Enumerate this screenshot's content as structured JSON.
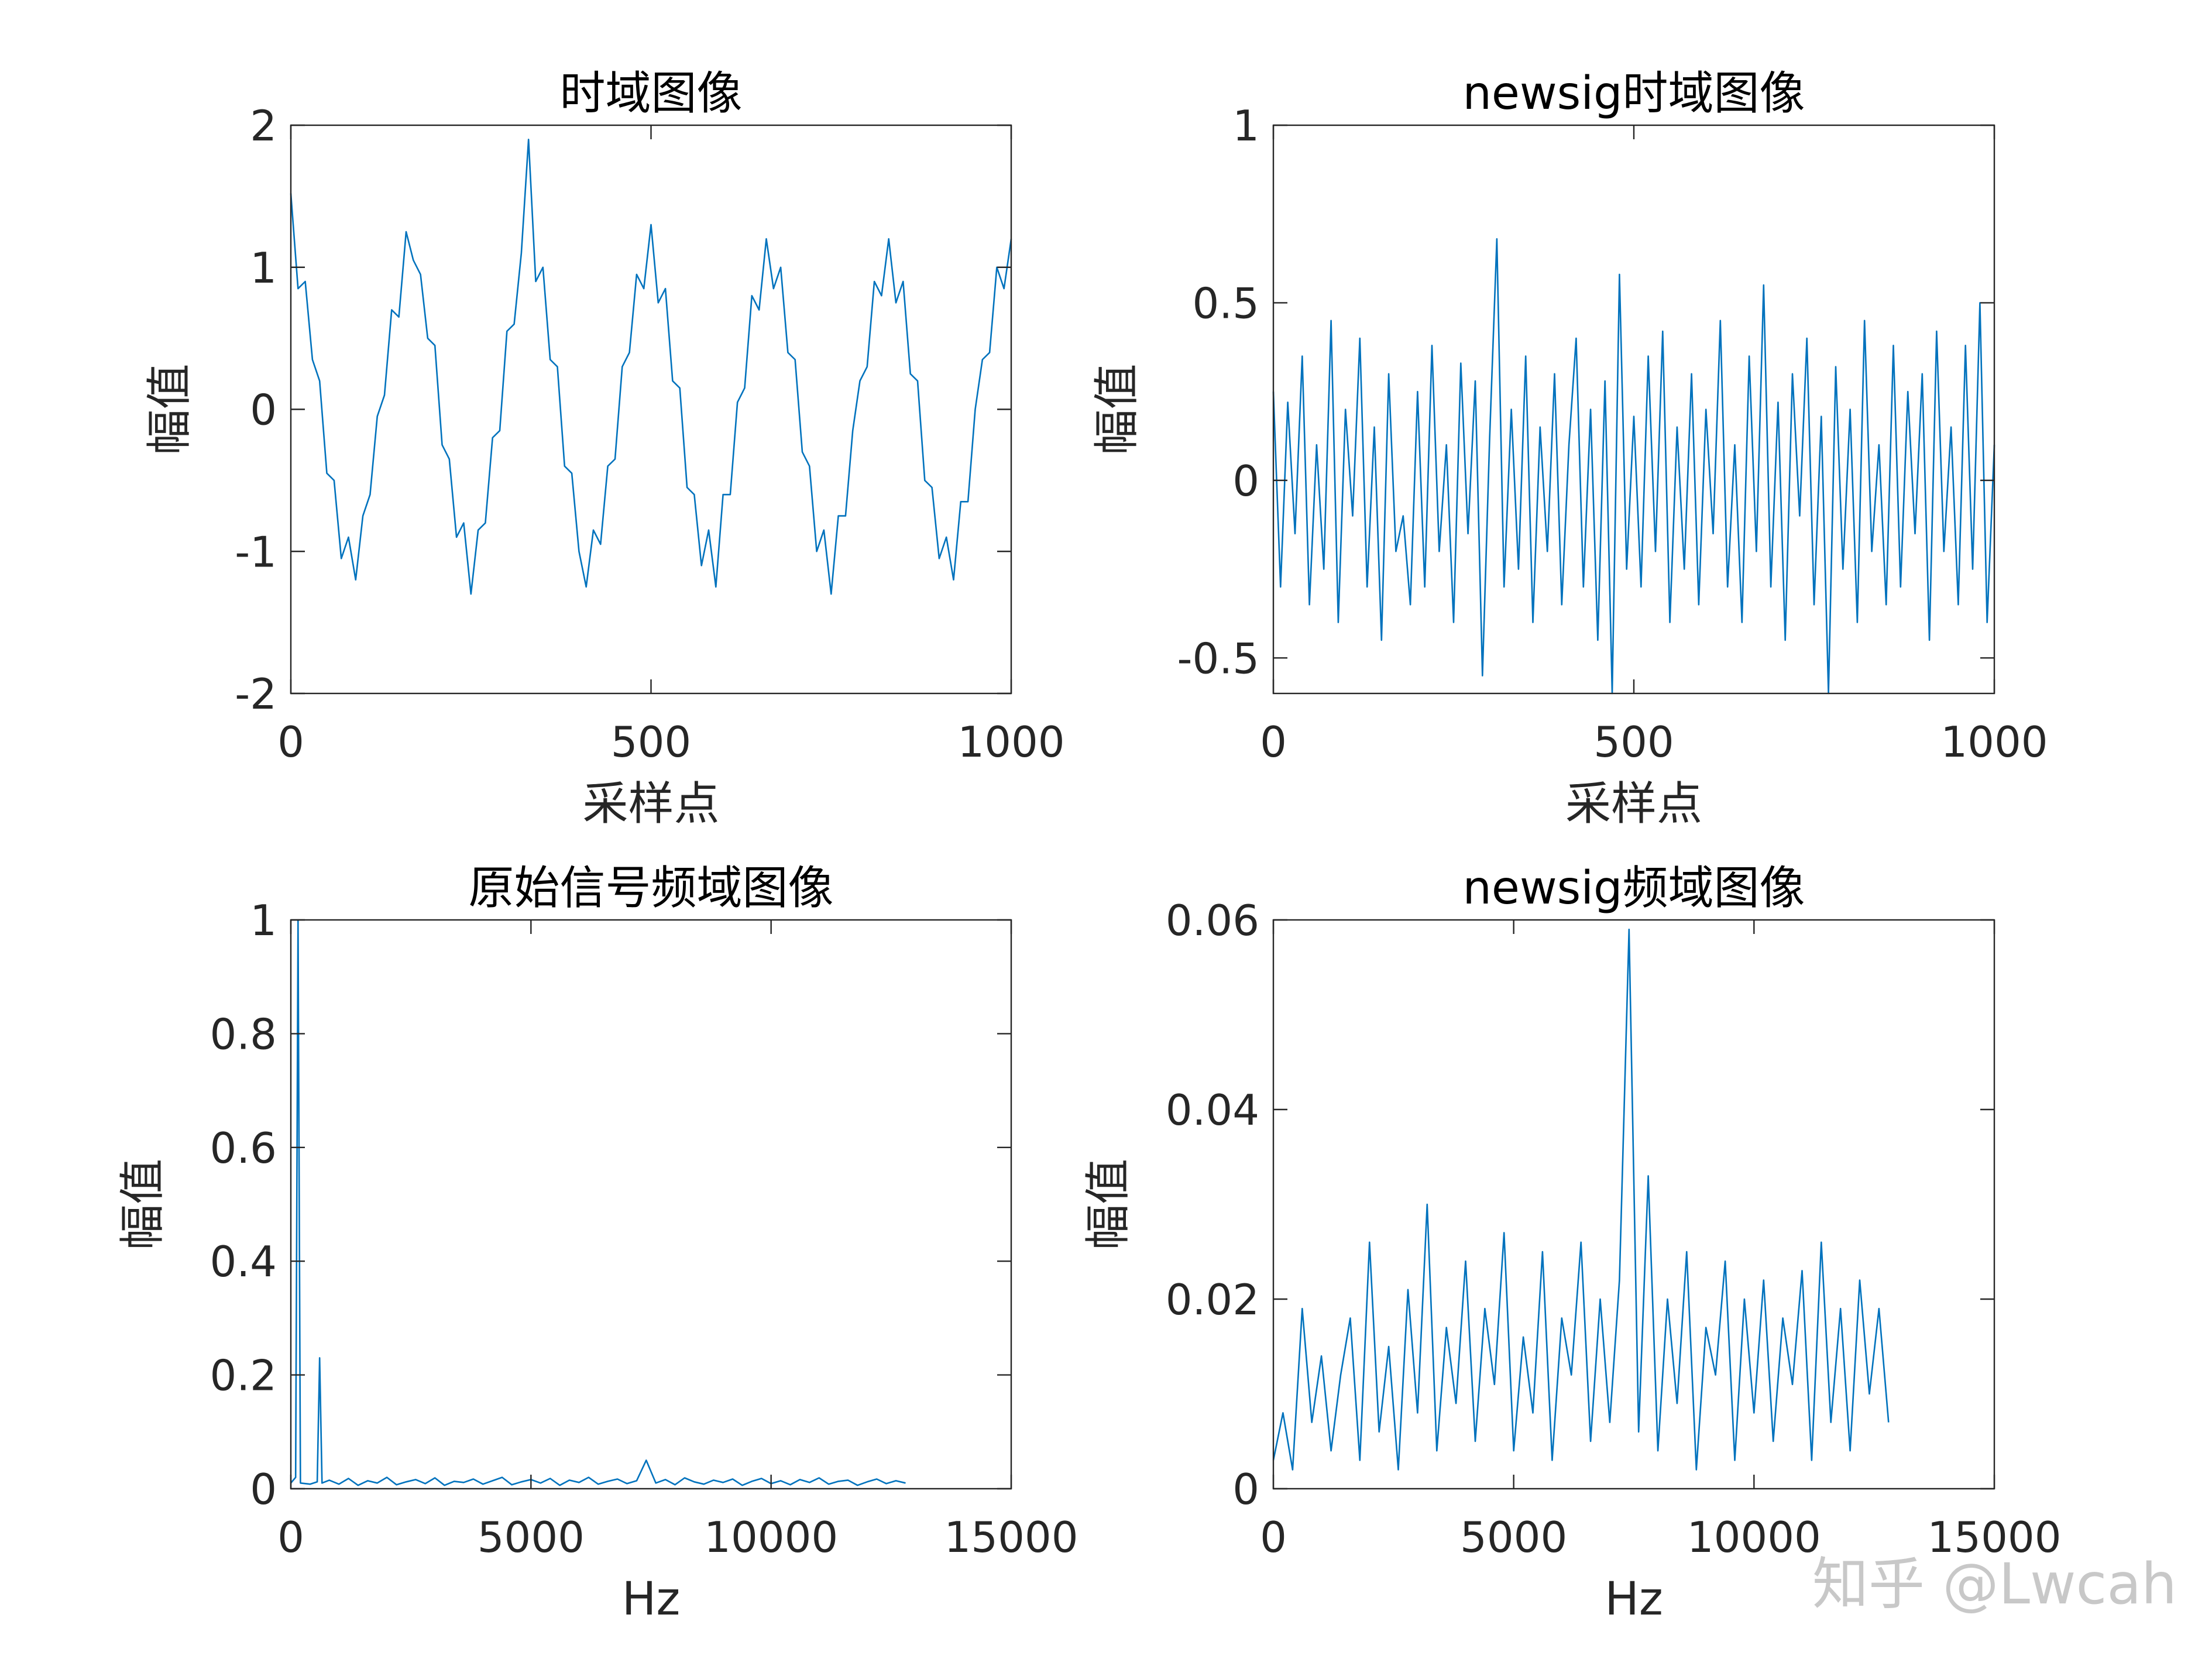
{
  "chart_data": [
    {
      "type": "line",
      "title": "时域图像",
      "xlabel": "采样点",
      "ylabel": "幅值",
      "color": "#0072bd",
      "xlim": [
        0,
        1000
      ],
      "xticks": [
        0,
        500,
        1000
      ],
      "ylim": [
        -2,
        2
      ],
      "yticks": [
        -2,
        -1,
        0,
        1,
        2
      ],
      "x": [
        0,
        10,
        20,
        30,
        40,
        50,
        60,
        70,
        80,
        90,
        100,
        110,
        120,
        130,
        140,
        150,
        160,
        170,
        180,
        190,
        200,
        210,
        220,
        230,
        240,
        250,
        260,
        270,
        280,
        290,
        300,
        310,
        320,
        330,
        340,
        350,
        360,
        370,
        380,
        390,
        400,
        410,
        420,
        430,
        440,
        450,
        460,
        470,
        480,
        490,
        500,
        510,
        520,
        530,
        540,
        550,
        560,
        570,
        580,
        590,
        600,
        610,
        620,
        630,
        640,
        650,
        660,
        670,
        680,
        690,
        700,
        710,
        720,
        730,
        740,
        750,
        760,
        770,
        780,
        790,
        800,
        810,
        820,
        830,
        840,
        850,
        860,
        870,
        880,
        890,
        900,
        910,
        920,
        930,
        940,
        950,
        960,
        970,
        980,
        990,
        1000
      ],
      "values": [
        1.52,
        0.85,
        0.9,
        0.35,
        0.2,
        -0.45,
        -0.5,
        -1.05,
        -0.9,
        -1.2,
        -0.75,
        -0.6,
        -0.05,
        0.1,
        0.7,
        0.65,
        1.25,
        1.05,
        0.95,
        0.5,
        0.45,
        -0.25,
        -0.35,
        -0.9,
        -0.8,
        -1.3,
        -0.85,
        -0.8,
        -0.2,
        -0.15,
        0.55,
        0.6,
        1.1,
        1.9,
        0.9,
        1.0,
        0.35,
        0.3,
        -0.4,
        -0.45,
        -1.0,
        -1.25,
        -0.85,
        -0.95,
        -0.4,
        -0.35,
        0.3,
        0.4,
        0.95,
        0.85,
        1.3,
        0.75,
        0.85,
        0.2,
        0.15,
        -0.55,
        -0.6,
        -1.1,
        -0.85,
        -1.25,
        -0.6,
        -0.6,
        0.05,
        0.15,
        0.8,
        0.7,
        1.2,
        0.85,
        1.0,
        0.4,
        0.35,
        -0.3,
        -0.4,
        -1.0,
        -0.85,
        -1.3,
        -0.75,
        -0.75,
        -0.15,
        0.2,
        0.3,
        0.9,
        0.8,
        1.2,
        0.75,
        0.9,
        0.25,
        0.2,
        -0.5,
        -0.55,
        -1.05,
        -0.9,
        -1.2,
        -0.65,
        -0.65,
        0.0,
        0.35,
        0.4,
        1.0,
        0.85,
        1.2
      ]
    },
    {
      "type": "line",
      "title": "newsig时域图像",
      "xlabel": "采样点",
      "ylabel": "幅值",
      "color": "#0072bd",
      "xlim": [
        0,
        1000
      ],
      "xticks": [
        0,
        500,
        1000
      ],
      "ylim": [
        -0.6,
        1
      ],
      "yticks": [
        -0.5,
        0,
        0.5,
        1
      ],
      "x": [
        0,
        10,
        20,
        30,
        40,
        50,
        60,
        70,
        80,
        90,
        100,
        110,
        120,
        130,
        140,
        150,
        160,
        170,
        180,
        190,
        200,
        210,
        220,
        230,
        240,
        250,
        260,
        270,
        280,
        290,
        300,
        310,
        320,
        330,
        340,
        350,
        360,
        370,
        380,
        390,
        400,
        410,
        420,
        430,
        440,
        450,
        460,
        470,
        480,
        490,
        500,
        510,
        520,
        530,
        540,
        550,
        560,
        570,
        580,
        590,
        600,
        610,
        620,
        630,
        640,
        650,
        660,
        670,
        680,
        690,
        700,
        710,
        720,
        730,
        740,
        750,
        760,
        770,
        780,
        790,
        800,
        810,
        820,
        830,
        840,
        850,
        860,
        870,
        880,
        890,
        900,
        910,
        920,
        930,
        940,
        950,
        960,
        970,
        980,
        990,
        1000
      ],
      "values": [
        0.25,
        -0.3,
        0.22,
        -0.15,
        0.35,
        -0.35,
        0.1,
        -0.25,
        0.45,
        -0.4,
        0.2,
        -0.1,
        0.4,
        -0.3,
        0.15,
        -0.45,
        0.3,
        -0.2,
        -0.1,
        -0.35,
        0.25,
        -0.3,
        0.38,
        -0.2,
        0.1,
        -0.4,
        0.33,
        -0.15,
        0.28,
        -0.55,
        0.12,
        0.68,
        -0.3,
        0.2,
        -0.25,
        0.35,
        -0.4,
        0.15,
        -0.2,
        0.3,
        -0.35,
        0.1,
        0.4,
        -0.3,
        0.2,
        -0.45,
        0.28,
        -0.6,
        0.58,
        -0.25,
        0.18,
        -0.3,
        0.35,
        -0.2,
        0.42,
        -0.4,
        0.15,
        -0.25,
        0.3,
        -0.35,
        0.2,
        -0.15,
        0.45,
        -0.3,
        0.1,
        -0.4,
        0.35,
        -0.2,
        0.55,
        -0.3,
        0.22,
        -0.45,
        0.3,
        -0.1,
        0.4,
        -0.35,
        0.18,
        -0.6,
        0.32,
        -0.25,
        0.2,
        -0.4,
        0.45,
        -0.2,
        0.1,
        -0.35,
        0.38,
        -0.3,
        0.25,
        -0.15,
        0.3,
        -0.45,
        0.42,
        -0.2,
        0.15,
        -0.35,
        0.38,
        -0.25,
        0.5,
        -0.4,
        0.1
      ]
    },
    {
      "type": "line",
      "title": "原始信号频域图像",
      "xlabel": "Hz",
      "ylabel": "幅值",
      "color": "#0072bd",
      "xlim": [
        0,
        15000
      ],
      "xticks": [
        0,
        5000,
        10000,
        15000
      ],
      "ylim": [
        0,
        1
      ],
      "yticks": [
        0,
        0.2,
        0.4,
        0.6,
        0.8,
        1
      ],
      "x": [
        0,
        100,
        150,
        200,
        400,
        550,
        600,
        650,
        800,
        1000,
        1200,
        1400,
        1600,
        1800,
        2000,
        2200,
        2400,
        2600,
        2800,
        3000,
        3200,
        3400,
        3600,
        3800,
        4000,
        4200,
        4400,
        4600,
        4800,
        5000,
        5200,
        5400,
        5600,
        5800,
        6000,
        6200,
        6400,
        6600,
        6800,
        7000,
        7200,
        7400,
        7600,
        7800,
        8000,
        8200,
        8400,
        8600,
        8800,
        9000,
        9200,
        9400,
        9600,
        9800,
        10000,
        10200,
        10400,
        10600,
        10800,
        11000,
        11200,
        11400,
        11600,
        11800,
        12000,
        12200,
        12400,
        12600,
        12800
      ],
      "values": [
        0.01,
        0.02,
        1.0,
        0.01,
        0.008,
        0.012,
        0.23,
        0.01,
        0.015,
        0.008,
        0.018,
        0.006,
        0.014,
        0.01,
        0.02,
        0.007,
        0.012,
        0.016,
        0.009,
        0.019,
        0.006,
        0.013,
        0.011,
        0.017,
        0.008,
        0.014,
        0.02,
        0.007,
        0.012,
        0.016,
        0.01,
        0.018,
        0.006,
        0.015,
        0.011,
        0.02,
        0.008,
        0.013,
        0.017,
        0.009,
        0.014,
        0.05,
        0.01,
        0.016,
        0.007,
        0.019,
        0.012,
        0.008,
        0.015,
        0.011,
        0.017,
        0.006,
        0.013,
        0.018,
        0.009,
        0.014,
        0.007,
        0.016,
        0.011,
        0.019,
        0.008,
        0.013,
        0.015,
        0.006,
        0.012,
        0.017,
        0.009,
        0.014,
        0.01
      ]
    },
    {
      "type": "line",
      "title": "newsig频域图像",
      "xlabel": "Hz",
      "ylabel": "幅值",
      "color": "#0072bd",
      "xlim": [
        0,
        15000
      ],
      "xticks": [
        0,
        5000,
        10000,
        15000
      ],
      "ylim": [
        0,
        0.06
      ],
      "yticks": [
        0,
        0.02,
        0.04,
        0.06
      ],
      "x": [
        0,
        200,
        400,
        600,
        800,
        1000,
        1200,
        1400,
        1600,
        1800,
        2000,
        2200,
        2400,
        2600,
        2800,
        3000,
        3200,
        3400,
        3600,
        3800,
        4000,
        4200,
        4400,
        4600,
        4800,
        5000,
        5200,
        5400,
        5600,
        5800,
        6000,
        6200,
        6400,
        6600,
        6800,
        7000,
        7200,
        7400,
        7600,
        7800,
        8000,
        8200,
        8400,
        8600,
        8800,
        9000,
        9200,
        9400,
        9600,
        9800,
        10000,
        10200,
        10400,
        10600,
        10800,
        11000,
        11200,
        11400,
        11600,
        11800,
        12000,
        12200,
        12400,
        12600,
        12800
      ],
      "values": [
        0.003,
        0.008,
        0.002,
        0.019,
        0.007,
        0.014,
        0.004,
        0.012,
        0.018,
        0.003,
        0.026,
        0.006,
        0.015,
        0.002,
        0.021,
        0.008,
        0.03,
        0.004,
        0.017,
        0.009,
        0.024,
        0.005,
        0.019,
        0.011,
        0.027,
        0.004,
        0.016,
        0.008,
        0.025,
        0.003,
        0.018,
        0.012,
        0.026,
        0.005,
        0.02,
        0.007,
        0.022,
        0.059,
        0.006,
        0.033,
        0.004,
        0.02,
        0.009,
        0.025,
        0.002,
        0.017,
        0.012,
        0.024,
        0.003,
        0.02,
        0.008,
        0.022,
        0.005,
        0.018,
        0.011,
        0.023,
        0.003,
        0.026,
        0.007,
        0.019,
        0.004,
        0.022,
        0.01,
        0.019,
        0.007
      ]
    }
  ],
  "watermark": "知乎 @Lwcah"
}
